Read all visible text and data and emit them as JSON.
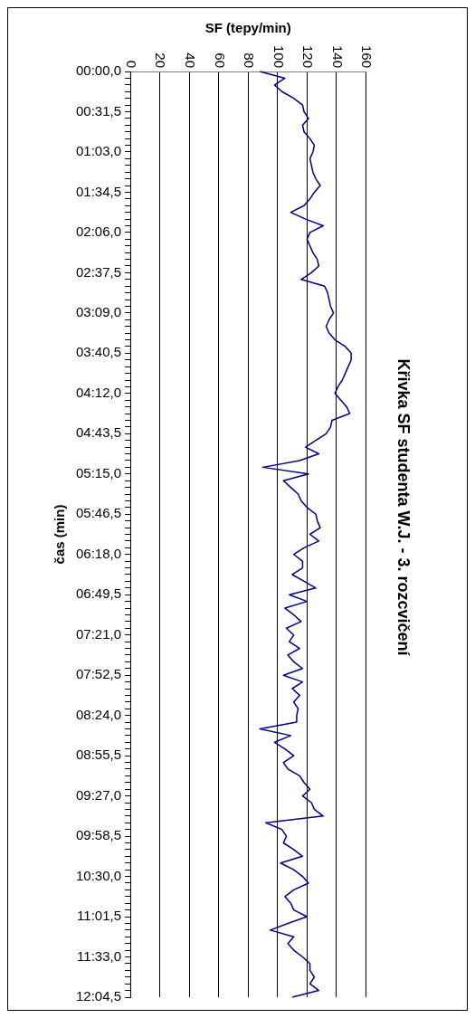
{
  "chart_data": {
    "type": "line",
    "orientation": "horizontal",
    "title": "Křivka SF studenta W.J. - 3. rozcvičení",
    "xlabel": "SF (tepy/min)",
    "ylabel": "čas (min)",
    "categories": [
      "00:00,0",
      null,
      null,
      null,
      null,
      null,
      "00:31,5",
      null,
      null,
      null,
      null,
      null,
      "01:03,0",
      null,
      null,
      null,
      null,
      null,
      "01:34,5",
      null,
      null,
      null,
      null,
      null,
      "02:06,0",
      null,
      null,
      null,
      null,
      null,
      "02:37,5",
      null,
      null,
      null,
      null,
      null,
      "03:09,0",
      null,
      null,
      null,
      null,
      null,
      "03:40,5",
      null,
      null,
      null,
      null,
      null,
      "04:12,0",
      null,
      null,
      null,
      null,
      null,
      "04:43,5",
      null,
      null,
      null,
      null,
      null,
      "05:15,0",
      null,
      null,
      null,
      null,
      null,
      "05:46,5",
      null,
      null,
      null,
      null,
      null,
      "06:18,0",
      null,
      null,
      null,
      null,
      null,
      "06:49,5",
      null,
      null,
      null,
      null,
      null,
      "07:21,0",
      null,
      null,
      null,
      null,
      null,
      "07:52,5",
      null,
      null,
      null,
      null,
      null,
      "08:24,0",
      null,
      null,
      null,
      null,
      null,
      "08:55,5",
      null,
      null,
      null,
      null,
      null,
      "09:27,0",
      null,
      null,
      null,
      null,
      null,
      "09:58,5",
      null,
      null,
      null,
      null,
      null,
      "10:30,0",
      null,
      null,
      null,
      null,
      null,
      "11:01,5",
      null,
      null,
      null,
      null,
      null,
      "11:33,0",
      null,
      null,
      null,
      null,
      null,
      "12:04,5"
    ],
    "series": [
      {
        "color": "#000080",
        "values": [
          88,
          105,
          98,
          103,
          111,
          117,
          118,
          121,
          117,
          118,
          122,
          125,
          124,
          122,
          123,
          124,
          126,
          129,
          125,
          122,
          118,
          109,
          119,
          131,
          122,
          120,
          122,
          124,
          127,
          128,
          123,
          116,
          132,
          134,
          135,
          136,
          138,
          135,
          133,
          135,
          139,
          146,
          150,
          150,
          148,
          146,
          144,
          141,
          139,
          143,
          147,
          149,
          137,
          136,
          133,
          126,
          119,
          128,
          115,
          90,
          121,
          104,
          109,
          114,
          116,
          120,
          126,
          127,
          129,
          122,
          128,
          118,
          111,
          117,
          117,
          110,
          118,
          126,
          108,
          120,
          105,
          111,
          116,
          106,
          111,
          108,
          115,
          107,
          111,
          117,
          104,
          117,
          110,
          115,
          111,
          114,
          113,
          113,
          88,
          109,
          98,
          105,
          111,
          104,
          107,
          115,
          118,
          122,
          117,
          123,
          125,
          131,
          92,
          103,
          106,
          104,
          111,
          117,
          102,
          111,
          117,
          121,
          111,
          105,
          109,
          111,
          120,
          107,
          95,
          111,
          107,
          111,
          117,
          122,
          122,
          125,
          122,
          128,
          110
        ]
      }
    ],
    "xlim": [
      0,
      160
    ],
    "xticks": [
      0,
      20,
      40,
      60,
      80,
      100,
      120,
      140,
      160
    ],
    "grid": "x"
  }
}
